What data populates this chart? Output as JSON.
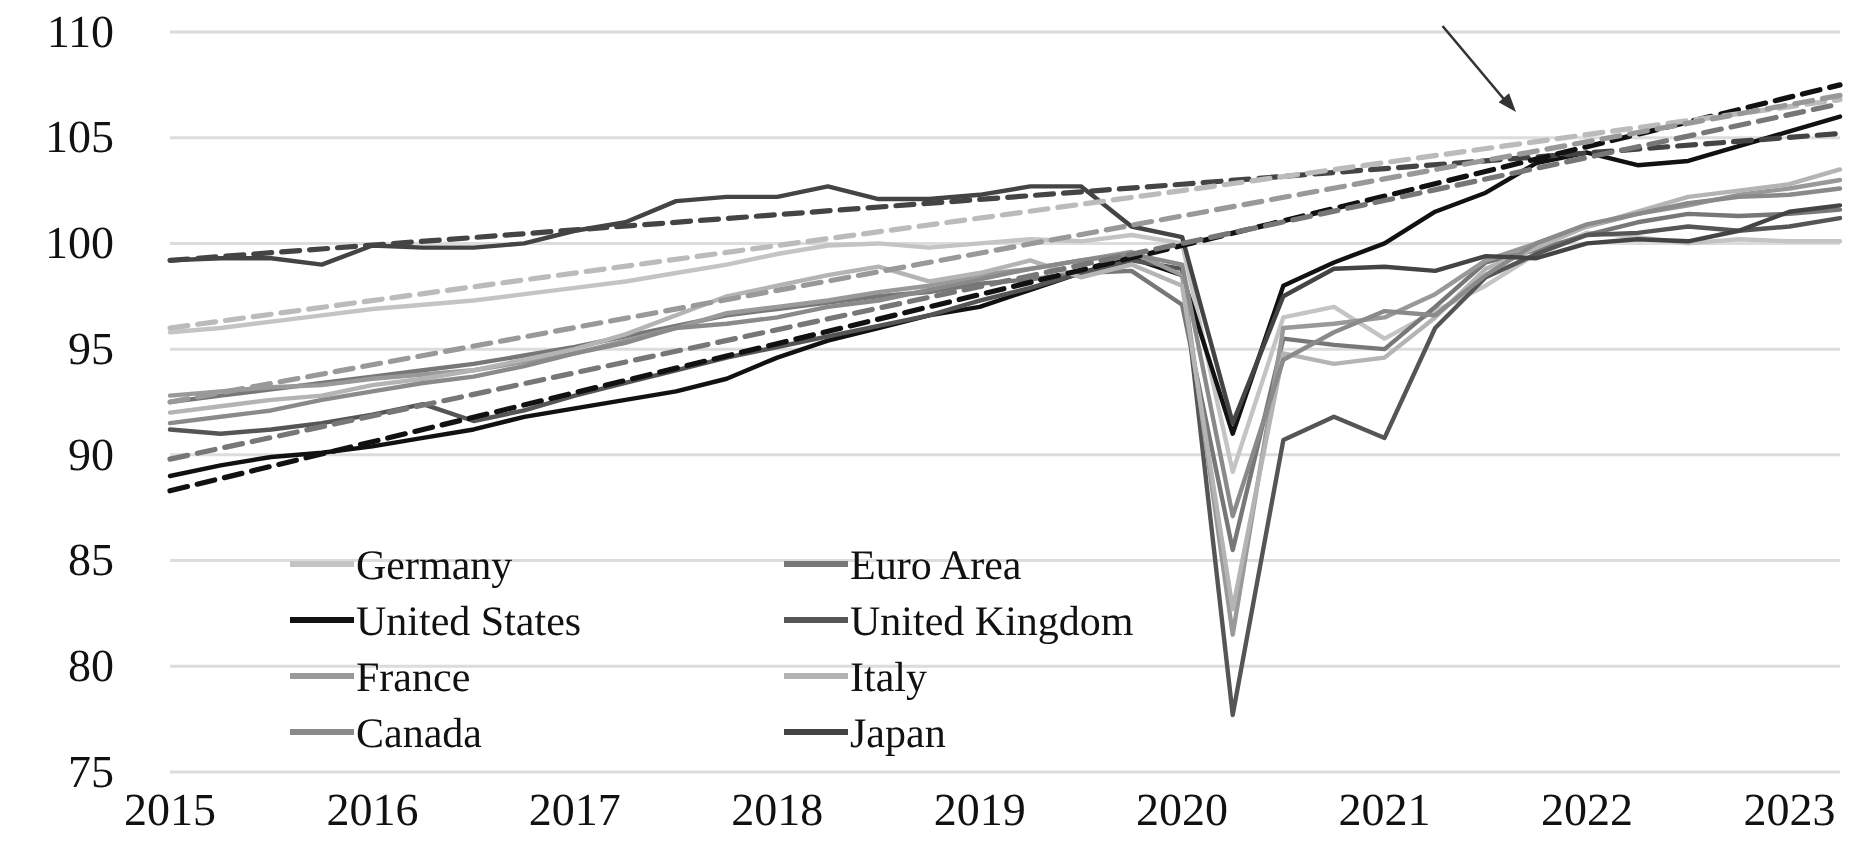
{
  "chart_data": {
    "type": "line",
    "x": [
      2015,
      2015.25,
      2015.5,
      2015.75,
      2016,
      2016.25,
      2016.5,
      2016.75,
      2017,
      2017.25,
      2017.5,
      2017.75,
      2018,
      2018.25,
      2018.5,
      2018.75,
      2019,
      2019.25,
      2019.5,
      2019.75,
      2020,
      2020.25,
      2020.5,
      2020.75,
      2021,
      2021.25,
      2021.5,
      2021.75,
      2022,
      2022.25,
      2022.5,
      2022.75,
      2023,
      2023.25
    ],
    "xlim": [
      2015,
      2023.25
    ],
    "xticks": [
      2015,
      2016,
      2017,
      2018,
      2019,
      2020,
      2021,
      2022,
      2023
    ],
    "ylim": [
      75,
      110
    ],
    "yticks": [
      75,
      80,
      85,
      90,
      95,
      100,
      105,
      110
    ],
    "grid": "y",
    "legend": "bottom left",
    "marker": "none",
    "series": [
      {
        "name": "Germany",
        "color": "#c4c4c4",
        "values": [
          95.8,
          96.0,
          96.3,
          96.6,
          96.9,
          97.1,
          97.3,
          97.6,
          97.9,
          98.2,
          98.6,
          99.0,
          99.5,
          99.9,
          100.0,
          99.8,
          100.0,
          100.2,
          100.1,
          100.4,
          100.0,
          89.2,
          96.5,
          97.0,
          95.5,
          96.8,
          98.0,
          99.5,
          100.5,
          100.3,
          100.0,
          100.2,
          100.1,
          100.1
        ]
      },
      {
        "name": "Euro Area",
        "color": "#777777",
        "values": [
          92.5,
          92.8,
          93.1,
          93.4,
          93.7,
          94.0,
          94.3,
          94.7,
          95.1,
          95.6,
          96.1,
          96.6,
          96.9,
          97.2,
          97.5,
          97.7,
          98.1,
          98.3,
          98.6,
          98.7,
          97.1,
          85.5,
          95.5,
          95.2,
          95.0,
          97.0,
          99.1,
          99.7,
          100.4,
          101.0,
          101.4,
          101.3,
          101.4,
          101.6
        ]
      },
      {
        "name": "United States",
        "color": "#111111",
        "values": [
          89.0,
          89.5,
          89.9,
          90.1,
          90.4,
          90.8,
          91.2,
          91.8,
          92.2,
          92.6,
          93.0,
          93.6,
          94.6,
          95.4,
          96.0,
          96.6,
          97.0,
          97.8,
          98.6,
          99.3,
          98.5,
          91.0,
          98.0,
          99.1,
          100.0,
          101.5,
          102.4,
          103.8,
          104.3,
          103.7,
          103.9,
          104.6,
          105.3,
          106.0
        ]
      },
      {
        "name": "United Kingdom",
        "color": "#555555",
        "values": [
          91.2,
          91.0,
          91.2,
          91.5,
          91.9,
          92.4,
          91.6,
          92.1,
          92.8,
          93.4,
          94.0,
          94.6,
          95.1,
          95.6,
          96.1,
          96.6,
          97.3,
          97.9,
          98.6,
          99.2,
          98.8,
          77.7,
          90.7,
          91.8,
          90.8,
          96.0,
          98.4,
          99.5,
          100.4,
          100.5,
          100.8,
          100.6,
          100.8,
          101.2
        ]
      },
      {
        "name": "France",
        "color": "#999999",
        "values": [
          92.8,
          93.0,
          93.2,
          93.3,
          93.6,
          93.8,
          94.0,
          94.4,
          94.8,
          95.4,
          96.0,
          96.7,
          97.0,
          97.3,
          97.7,
          98.0,
          98.5,
          98.8,
          99.2,
          99.6,
          98.5,
          81.5,
          96.0,
          96.2,
          96.5,
          97.6,
          99.2,
          100.0,
          100.8,
          101.4,
          101.8,
          102.3,
          102.6,
          103.0
        ]
      },
      {
        "name": "Italy",
        "color": "#b4b4b4",
        "values": [
          92.0,
          92.3,
          92.6,
          92.8,
          93.3,
          93.6,
          94.0,
          94.5,
          95.0,
          95.7,
          96.6,
          97.5,
          98.0,
          98.5,
          98.9,
          98.2,
          98.6,
          99.2,
          98.4,
          99.0,
          98.0,
          82.7,
          94.8,
          94.3,
          94.6,
          96.5,
          98.8,
          99.8,
          100.8,
          101.5,
          102.2,
          102.5,
          102.8,
          103.5
        ]
      },
      {
        "name": "Canada",
        "color": "#8a8a8a",
        "values": [
          91.5,
          91.8,
          92.1,
          92.6,
          93.0,
          93.4,
          93.7,
          94.2,
          94.8,
          95.3,
          96.0,
          96.2,
          96.5,
          97.0,
          97.3,
          97.8,
          98.3,
          98.8,
          99.2,
          99.5,
          99.0,
          87.1,
          94.5,
          95.8,
          96.8,
          96.6,
          98.5,
          100.0,
          100.9,
          101.4,
          101.9,
          102.2,
          102.3,
          102.6
        ]
      },
      {
        "name": "Japan",
        "color": "#444444",
        "values": [
          99.2,
          99.3,
          99.3,
          99.0,
          99.9,
          99.8,
          99.8,
          100.0,
          100.6,
          101.0,
          102.0,
          102.2,
          102.2,
          102.7,
          102.1,
          102.1,
          102.3,
          102.7,
          102.7,
          100.8,
          100.3,
          91.5,
          97.5,
          98.8,
          98.9,
          98.7,
          99.4,
          99.3,
          100.0,
          100.2,
          100.1,
          100.6,
          101.5,
          101.8
        ]
      },
      {
        "type": "line",
        "color": "#444444",
        "line_style": "dashed",
        "x": [
          2015,
          2020,
          2023.25
        ],
        "values": [
          99.2,
          102.8,
          105.2
        ]
      },
      {
        "type": "line",
        "color": "#111111",
        "line_style": "dashed",
        "x": [
          2015,
          2020,
          2023.25
        ],
        "values": [
          88.3,
          99.9,
          107.5
        ]
      },
      {
        "type": "line",
        "color": "#bbbbbb",
        "line_style": "dashed",
        "x": [
          2015,
          2020,
          2023.25
        ],
        "values": [
          96.0,
          102.5,
          106.8
        ]
      },
      {
        "type": "line",
        "color": "#999999",
        "line_style": "dashed",
        "x": [
          2015,
          2020,
          2023.25
        ],
        "values": [
          92.5,
          101.3,
          107.0
        ]
      },
      {
        "type": "line",
        "color": "#777777",
        "line_style": "dashed",
        "x": [
          2015,
          2020,
          2023.25
        ],
        "values": [
          89.8,
          100.0,
          106.6
        ]
      }
    ]
  }
}
